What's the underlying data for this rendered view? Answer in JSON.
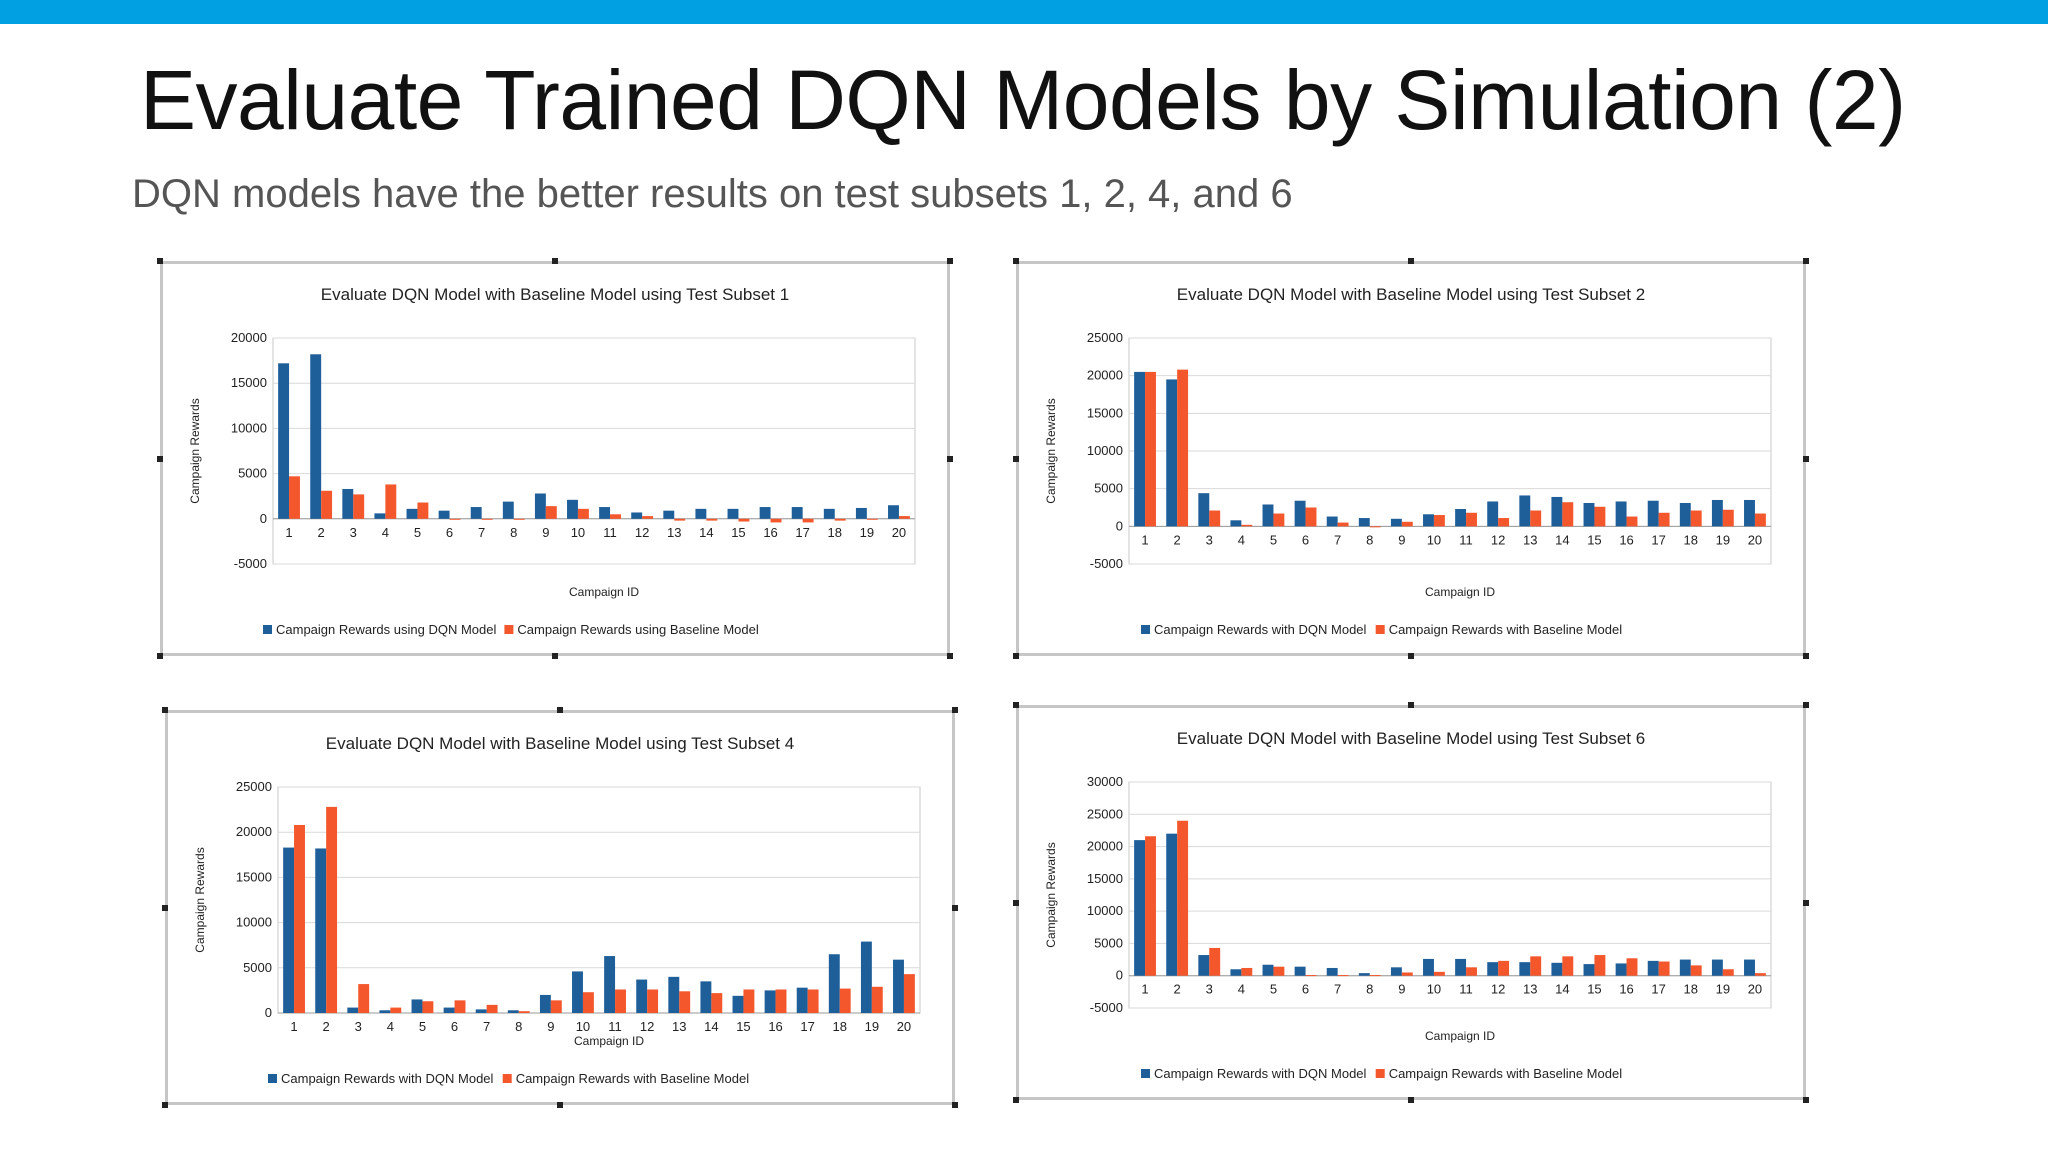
{
  "slide": {
    "title": "Evaluate Trained DQN Models by Simulation (2)",
    "subtitle": "DQN models have the better results on test subsets 1, 2, 4, and 6",
    "accent_color": "#00a0e3"
  },
  "colors": {
    "dqn": "#1f5f99",
    "baseline": "#f4572c",
    "grid": "#d9d9d9"
  },
  "chart_data": [
    {
      "type": "bar",
      "title": "Evaluate DQN Model with Baseline Model using Test Subset 1",
      "xlabel": "Campaign  ID",
      "ylabel": "Campaign  Rewards",
      "ylim": [
        -5000,
        20000
      ],
      "yticks": [
        -5000,
        0,
        5000,
        10000,
        15000,
        20000
      ],
      "grid": true,
      "legend": "bottom",
      "categories": [
        "1",
        "2",
        "3",
        "4",
        "5",
        "6",
        "7",
        "8",
        "9",
        "10",
        "11",
        "12",
        "13",
        "14",
        "15",
        "16",
        "17",
        "18",
        "19",
        "20"
      ],
      "series": [
        {
          "name": "Campaign Rewards using DQN Model",
          "values": [
            17200,
            18200,
            3300,
            600,
            1100,
            900,
            1300,
            1900,
            2800,
            2100,
            1300,
            700,
            900,
            1100,
            1100,
            1300,
            1300,
            1100,
            1200,
            1500
          ]
        },
        {
          "name": "Campaign Rewards using Baseline Model",
          "values": [
            4700,
            3100,
            2700,
            3800,
            1800,
            -100,
            -100,
            -100,
            1400,
            1100,
            500,
            300,
            -200,
            -200,
            -300,
            -400,
            -400,
            -200,
            -100,
            300
          ]
        }
      ]
    },
    {
      "type": "bar",
      "title": "Evaluate DQN Model with Baseline Model using Test Subset 2",
      "xlabel": "Campaign  ID",
      "ylabel": "Campaign  Rewards",
      "ylim": [
        -5000,
        25000
      ],
      "yticks": [
        -5000,
        0,
        5000,
        10000,
        15000,
        20000,
        25000
      ],
      "grid": true,
      "legend": "bottom",
      "categories": [
        "1",
        "2",
        "3",
        "4",
        "5",
        "6",
        "7",
        "8",
        "9",
        "10",
        "11",
        "12",
        "13",
        "14",
        "15",
        "16",
        "17",
        "18",
        "19",
        "20"
      ],
      "series": [
        {
          "name": "Campaign Rewards with DQN Model",
          "values": [
            20500,
            19500,
            4400,
            800,
            2900,
            3400,
            1300,
            1100,
            1000,
            1600,
            2300,
            3300,
            4100,
            3900,
            3100,
            3300,
            3400,
            3100,
            3500,
            3500
          ]
        },
        {
          "name": "Campaign Rewards with Baseline Model",
          "values": [
            20500,
            20800,
            2100,
            200,
            1700,
            2500,
            500,
            0,
            600,
            1500,
            1800,
            1100,
            2100,
            3200,
            2600,
            1300,
            1800,
            2100,
            2200,
            1700
          ]
        }
      ]
    },
    {
      "type": "bar",
      "title": "Evaluate DQN Model with Baseline Model using Test Subset 4",
      "xlabel": "Campaign  ID",
      "ylabel": "Campaign  Rewards",
      "ylim": [
        0,
        25000
      ],
      "yticks": [
        0,
        5000,
        10000,
        15000,
        20000,
        25000
      ],
      "grid": true,
      "legend": "bottom",
      "categories": [
        "1",
        "2",
        "3",
        "4",
        "5",
        "6",
        "7",
        "8",
        "9",
        "10",
        "11",
        "12",
        "13",
        "14",
        "15",
        "16",
        "17",
        "18",
        "19",
        "20"
      ],
      "series": [
        {
          "name": "Campaign Rewards with DQN Model",
          "values": [
            18300,
            18200,
            600,
            300,
            1500,
            600,
            400,
            300,
            2000,
            4600,
            6300,
            3700,
            4000,
            3500,
            1900,
            2500,
            2800,
            6500,
            7900,
            5900
          ]
        },
        {
          "name": "Campaign Rewards with Baseline Model",
          "values": [
            20800,
            22800,
            3200,
            600,
            1300,
            1400,
            900,
            200,
            1400,
            2300,
            2600,
            2600,
            2400,
            2200,
            2600,
            2600,
            2600,
            2700,
            2900,
            4300
          ]
        }
      ]
    },
    {
      "type": "bar",
      "title": "Evaluate DQN Model with Baseline Model using Test Subset 6",
      "xlabel": "Campaign  ID",
      "ylabel": "Campaign  Rewards",
      "ylim": [
        -5000,
        30000
      ],
      "yticks": [
        -5000,
        0,
        5000,
        10000,
        15000,
        20000,
        25000,
        30000
      ],
      "grid": true,
      "legend": "bottom",
      "categories": [
        "1",
        "2",
        "3",
        "4",
        "5",
        "6",
        "7",
        "8",
        "9",
        "10",
        "11",
        "12",
        "13",
        "14",
        "15",
        "16",
        "17",
        "18",
        "19",
        "20"
      ],
      "series": [
        {
          "name": "Campaign Rewards with DQN Model",
          "values": [
            21000,
            22000,
            3200,
            1000,
            1700,
            1400,
            1200,
            400,
            1300,
            2600,
            2600,
            2100,
            2100,
            2000,
            1800,
            1900,
            2300,
            2500,
            2500,
            2500
          ]
        },
        {
          "name": "Campaign Rewards with Baseline Model",
          "values": [
            21600,
            24000,
            4300,
            1200,
            1400,
            100,
            100,
            100,
            500,
            600,
            1300,
            2300,
            3000,
            3000,
            3200,
            2700,
            2200,
            1600,
            1000,
            400
          ]
        }
      ]
    }
  ]
}
